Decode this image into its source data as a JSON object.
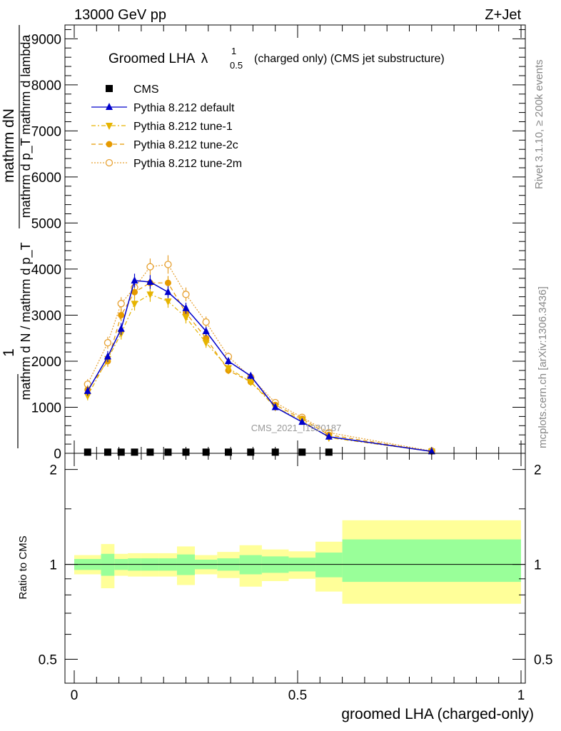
{
  "header": {
    "left": "13000 GeV pp",
    "right": "Z+Jet"
  },
  "side_labels": {
    "rivet": "Rivet 3.1.10, ≥ 200k events",
    "mcplots": "mcplots.cern.ch [arXiv:1306.3436]"
  },
  "watermark": "CMS_2021_I1920187",
  "chart_data": [
    {
      "type": "line",
      "title_main": "Groomed LHA",
      "title_symbol": "λ",
      "title_sup": "1",
      "title_sub": "0.5",
      "title_rest": "(charged only) (CMS jet substructure)",
      "ylabel_num": "1",
      "ylabel_num_text": "mathrm dN",
      "ylabel_num_den": "mathrm d p_T mathrm d lambda",
      "ylabel_den": "mathrm d N / mathrm d p_T",
      "xlabel": "",
      "xlim": [
        -0.02,
        1.0
      ],
      "ylim": [
        0,
        9300
      ],
      "yticks": [
        0,
        1000,
        2000,
        3000,
        4000,
        5000,
        6000,
        7000,
        8000,
        9000
      ],
      "ytick_labels": [
        "0",
        "1000",
        "2000",
        "3000",
        "4000",
        "5000",
        "6000",
        "7000",
        "8000",
        "9000"
      ],
      "legend": [
        {
          "name": "CMS",
          "color": "#000000",
          "marker": "square",
          "line": "none"
        },
        {
          "name": "Pythia 8.212 default",
          "color": "#0000cc",
          "marker": "triangle-up",
          "line": "solid"
        },
        {
          "name": "Pythia 8.212 tune-1",
          "color": "#e6b400",
          "marker": "triangle-down",
          "line": "dashdot"
        },
        {
          "name": "Pythia 8.212 tune-2c",
          "color": "#e69a00",
          "marker": "circle",
          "line": "dashed"
        },
        {
          "name": "Pythia 8.212 tune-2m",
          "color": "#e6a030",
          "marker": "circle-open",
          "line": "dotted"
        }
      ],
      "cms": {
        "x": [
          0.03,
          0.075,
          0.105,
          0.135,
          0.17,
          0.21,
          0.25,
          0.295,
          0.345,
          0.395,
          0.45,
          0.51,
          0.57
        ],
        "y": [
          25,
          25,
          25,
          25,
          25,
          25,
          25,
          25,
          25,
          25,
          25,
          25,
          25
        ]
      },
      "series": [
        {
          "name": "Pythia 8.212 default",
          "x": [
            0.03,
            0.075,
            0.105,
            0.135,
            0.17,
            0.21,
            0.25,
            0.295,
            0.345,
            0.395,
            0.45,
            0.51,
            0.57,
            0.8
          ],
          "y": [
            1350,
            2100,
            2700,
            3750,
            3720,
            3500,
            3150,
            2650,
            2000,
            1680,
            1000,
            680,
            360,
            40
          ],
          "err": [
            100,
            120,
            130,
            150,
            150,
            130,
            120,
            100,
            80,
            70,
            50,
            40,
            30,
            10
          ]
        },
        {
          "name": "Pythia 8.212 tune-1",
          "x": [
            0.03,
            0.075,
            0.105,
            0.135,
            0.17,
            0.21,
            0.25,
            0.295,
            0.345,
            0.395,
            0.45,
            0.51,
            0.57,
            0.8
          ],
          "y": [
            1250,
            2050,
            2600,
            3250,
            3450,
            3300,
            2950,
            2400,
            1850,
            1550,
            1000,
            720,
            340,
            40
          ],
          "err": [
            100,
            120,
            130,
            150,
            160,
            140,
            130,
            110,
            80,
            70,
            50,
            40,
            30,
            10
          ]
        },
        {
          "name": "Pythia 8.212 tune-2c",
          "x": [
            0.03,
            0.075,
            0.105,
            0.135,
            0.17,
            0.21,
            0.25,
            0.295,
            0.345,
            0.395,
            0.45,
            0.51,
            0.57,
            0.8
          ],
          "y": [
            1380,
            2000,
            3000,
            3500,
            3700,
            3700,
            3050,
            2500,
            1800,
            1550,
            1050,
            750,
            400,
            40
          ],
          "err": [
            100,
            120,
            130,
            150,
            160,
            150,
            130,
            110,
            80,
            70,
            50,
            40,
            30,
            10
          ]
        },
        {
          "name": "Pythia 8.212 tune-2m",
          "x": [
            0.03,
            0.075,
            0.105,
            0.135,
            0.17,
            0.21,
            0.25,
            0.295,
            0.345,
            0.395,
            0.45,
            0.51,
            0.57,
            0.8
          ],
          "y": [
            1500,
            2400,
            3250,
            3600,
            4050,
            4100,
            3450,
            2850,
            2100,
            1650,
            1100,
            780,
            450,
            50
          ],
          "err": [
            110,
            130,
            140,
            160,
            180,
            200,
            150,
            120,
            90,
            80,
            60,
            40,
            30,
            10
          ]
        }
      ]
    },
    {
      "type": "area",
      "xlabel": "groomed LHA (charged-only)",
      "ylabel": "Ratio to CMS",
      "xlim": [
        -0.02,
        1.0
      ],
      "ylim": [
        0.42,
        2.25
      ],
      "log_y": true,
      "yticks": [
        0.5,
        1,
        2
      ],
      "ytick_labels": [
        "0.5",
        "1",
        "2"
      ],
      "xticks": [
        0,
        0.5,
        1
      ],
      "xtick_labels": [
        "0",
        "0.5",
        "1"
      ],
      "bins": [
        {
          "x0": 0.0,
          "x1": 0.06,
          "inner": [
            0.96,
            1.04
          ],
          "outer": [
            0.93,
            1.07
          ]
        },
        {
          "x0": 0.06,
          "x1": 0.09,
          "inner": [
            0.92,
            1.08
          ],
          "outer": [
            0.84,
            1.16
          ]
        },
        {
          "x0": 0.09,
          "x1": 0.12,
          "inner": [
            0.96,
            1.04
          ],
          "outer": [
            0.92,
            1.08
          ]
        },
        {
          "x0": 0.12,
          "x1": 0.15,
          "inner": [
            0.955,
            1.045
          ],
          "outer": [
            0.915,
            1.085
          ]
        },
        {
          "x0": 0.15,
          "x1": 0.19,
          "inner": [
            0.955,
            1.045
          ],
          "outer": [
            0.915,
            1.085
          ]
        },
        {
          "x0": 0.19,
          "x1": 0.23,
          "inner": [
            0.955,
            1.045
          ],
          "outer": [
            0.915,
            1.085
          ]
        },
        {
          "x0": 0.23,
          "x1": 0.27,
          "inner": [
            0.925,
            1.075
          ],
          "outer": [
            0.86,
            1.14
          ]
        },
        {
          "x0": 0.27,
          "x1": 0.32,
          "inner": [
            0.965,
            1.035
          ],
          "outer": [
            0.93,
            1.07
          ]
        },
        {
          "x0": 0.32,
          "x1": 0.37,
          "inner": [
            0.955,
            1.045
          ],
          "outer": [
            0.905,
            1.095
          ]
        },
        {
          "x0": 0.37,
          "x1": 0.42,
          "inner": [
            0.93,
            1.07
          ],
          "outer": [
            0.85,
            1.15
          ]
        },
        {
          "x0": 0.42,
          "x1": 0.48,
          "inner": [
            0.94,
            1.06
          ],
          "outer": [
            0.885,
            1.115
          ]
        },
        {
          "x0": 0.48,
          "x1": 0.54,
          "inner": [
            0.95,
            1.05
          ],
          "outer": [
            0.9,
            1.1
          ]
        },
        {
          "x0": 0.54,
          "x1": 0.6,
          "inner": [
            0.91,
            1.09
          ],
          "outer": [
            0.82,
            1.18
          ]
        },
        {
          "x0": 0.6,
          "x1": 1.0,
          "inner": [
            0.88,
            1.2
          ],
          "outer": [
            0.75,
            1.38
          ]
        }
      ],
      "colors": {
        "inner": "#99ff99",
        "outer": "#ffff99"
      }
    }
  ]
}
